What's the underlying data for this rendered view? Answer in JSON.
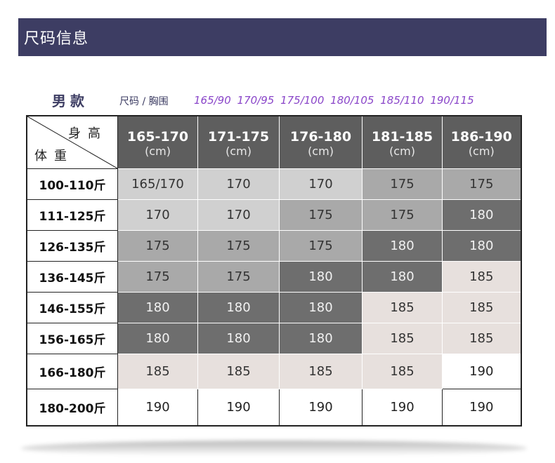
{
  "banner": {
    "title": "尺码信息"
  },
  "subtitle": {
    "gender": "男款",
    "size_label": "尺码 / 胸围",
    "sizes": "165/90 170/95 175/100 180/105 185/110 190/115"
  },
  "table": {
    "corner_top": "身高",
    "corner_bottom": "体重",
    "unit": "(cm)",
    "columns": [
      "165-170",
      "171-175",
      "176-180",
      "181-185",
      "186-190"
    ],
    "rows": [
      {
        "label": "100-110斤",
        "values": [
          "165/170",
          "170",
          "170",
          "175",
          "175"
        ]
      },
      {
        "label": "111-125斤",
        "values": [
          "170",
          "170",
          "175",
          "175",
          "180"
        ]
      },
      {
        "label": "126-135斤",
        "values": [
          "175",
          "175",
          "175",
          "180",
          "180"
        ]
      },
      {
        "label": "136-145斤",
        "values": [
          "175",
          "175",
          "180",
          "180",
          "185"
        ]
      },
      {
        "label": "146-155斤",
        "values": [
          "180",
          "180",
          "180",
          "185",
          "185"
        ]
      },
      {
        "label": "156-165斤",
        "values": [
          "180",
          "180",
          "180",
          "185",
          "185"
        ]
      },
      {
        "label": "166-180斤",
        "values": [
          "185",
          "185",
          "185",
          "185",
          "190"
        ]
      },
      {
        "label": "180-200斤",
        "values": [
          "190",
          "190",
          "190",
          "190",
          "190"
        ]
      }
    ]
  },
  "colors": {
    "banner": "#3d3d63",
    "header": "#5e5e5e",
    "size_170": "#d0d0d0",
    "size_175": "#a9a9a9",
    "size_180": "#6e6e6e",
    "size_185": "#e7e0dd",
    "size_190": "#ffffff",
    "size_list_text": "#8a46c9"
  }
}
